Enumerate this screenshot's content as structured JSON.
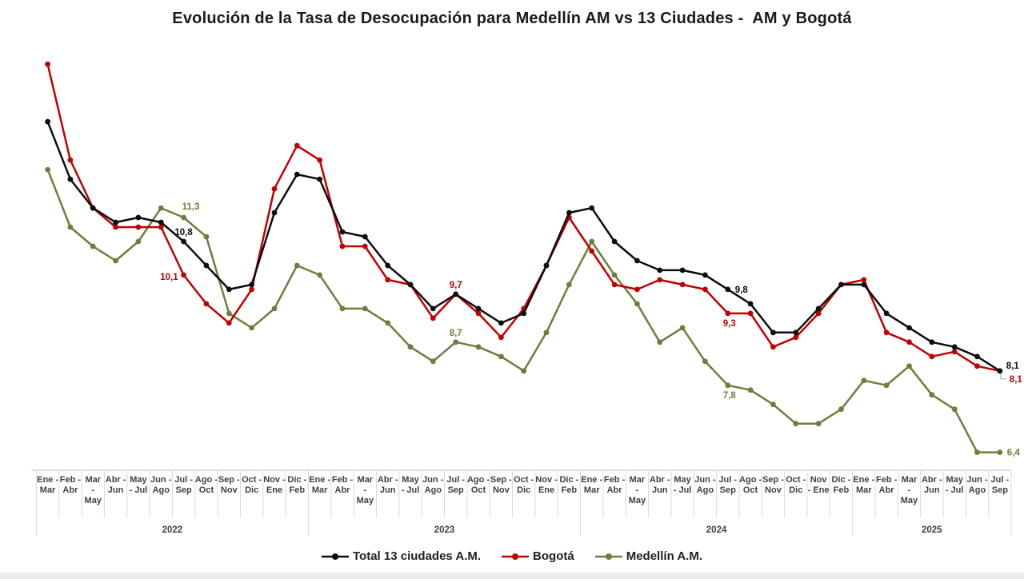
{
  "chart_data": {
    "type": "line",
    "title": "Evolución de la Tasa de Desocupación para Medellín AM vs 13 Ciudades -  AM y Bogotá",
    "ylabel": "",
    "xlabel": "",
    "ylim": [
      6,
      15
    ],
    "grid": "off",
    "legend_position": "bottom",
    "x_axis_note": "rolling quarters, multi-level axis grouped by year, no visible y axis",
    "categories": [
      [
        "Ene -",
        "Mar"
      ],
      [
        "Feb -",
        "Abr"
      ],
      [
        "Mar",
        "-",
        "May"
      ],
      [
        "Abr -",
        "Jun"
      ],
      [
        "May",
        "- Jul"
      ],
      [
        "Jun -",
        "Ago"
      ],
      [
        "Jul -",
        "Sep"
      ],
      [
        "Ago -",
        "Oct"
      ],
      [
        "Sep -",
        "Nov"
      ],
      [
        "Oct -",
        "Dic"
      ],
      [
        "Nov -",
        "Ene"
      ],
      [
        "Dic -",
        "Feb"
      ],
      [
        "Ene -",
        "Mar"
      ],
      [
        "Feb -",
        "Abr"
      ],
      [
        "Mar",
        "-",
        "May"
      ],
      [
        "Abr -",
        "Jun"
      ],
      [
        "May",
        "- Jul"
      ],
      [
        "Jun -",
        "Ago"
      ],
      [
        "Jul -",
        "Sep"
      ],
      [
        "Ago -",
        "Oct"
      ],
      [
        "Sep -",
        "Nov"
      ],
      [
        "Oct -",
        "Dic"
      ],
      [
        "Nov -",
        "Ene"
      ],
      [
        "Dic -",
        "Feb"
      ],
      [
        "Ene -",
        "Mar"
      ],
      [
        "Feb -",
        "Abr"
      ],
      [
        "Mar",
        "-",
        "May"
      ],
      [
        "Abr -",
        "Jun"
      ],
      [
        "May",
        "- Jul"
      ],
      [
        "Jun -",
        "Ago"
      ],
      [
        "Jul -",
        "Sep"
      ],
      [
        "Ago -",
        "Oct"
      ],
      [
        "Sep -",
        "Nov"
      ],
      [
        "Oct -",
        "Dic"
      ],
      [
        "Nov",
        "- Ene"
      ],
      [
        "Dic -",
        "Feb"
      ],
      [
        "Ene -",
        "Mar"
      ],
      [
        "Feb -",
        "Abr"
      ],
      [
        "Mar",
        "-",
        "May"
      ],
      [
        "Abr -",
        "Jun"
      ],
      [
        "May",
        "- Jul"
      ],
      [
        "Jun -",
        "Ago"
      ],
      [
        "Jul -",
        "Sep"
      ]
    ],
    "year_groups": [
      {
        "label": "2022",
        "start": 0,
        "count": 12
      },
      {
        "label": "2023",
        "start": 12,
        "count": 12
      },
      {
        "label": "2024",
        "start": 24,
        "count": 12
      },
      {
        "label": "2025",
        "start": 36,
        "count": 7
      }
    ],
    "series": [
      {
        "name": "Total 13 ciudades A.M.",
        "color": "#0d0d0d",
        "values": [
          13.3,
          12.1,
          11.5,
          11.2,
          11.3,
          11.2,
          10.8,
          10.3,
          9.8,
          9.9,
          11.4,
          12.2,
          12.1,
          11.0,
          10.9,
          10.3,
          9.9,
          9.4,
          9.7,
          9.4,
          9.1,
          9.3,
          10.3,
          11.4,
          11.5,
          10.8,
          10.4,
          10.2,
          10.2,
          10.1,
          9.8,
          9.5,
          8.9,
          8.9,
          9.4,
          9.9,
          9.9,
          9.3,
          9.0,
          8.7,
          8.6,
          8.4,
          8.1
        ],
        "labels": [
          {
            "index": 6,
            "text": "10,8",
            "placement": "above"
          },
          {
            "index": 30,
            "text": "9,8",
            "placement": "right"
          },
          {
            "index": 42,
            "text": "8,1",
            "placement": "right-above"
          }
        ]
      },
      {
        "name": "Bogotá",
        "color": "#c00000",
        "values": [
          14.5,
          12.5,
          11.5,
          11.1,
          11.1,
          11.1,
          10.1,
          9.5,
          9.1,
          9.8,
          11.9,
          12.8,
          12.5,
          10.7,
          10.7,
          10.0,
          9.9,
          9.2,
          9.7,
          9.3,
          8.8,
          9.4,
          10.3,
          11.3,
          10.6,
          9.9,
          9.8,
          10.0,
          9.9,
          9.8,
          9.3,
          9.3,
          8.6,
          8.8,
          9.3,
          9.9,
          10.0,
          8.9,
          8.7,
          8.4,
          8.5,
          8.2,
          8.1
        ],
        "labels": [
          {
            "index": 6,
            "text": "10,1",
            "placement": "left"
          },
          {
            "index": 18,
            "text": "9,7",
            "placement": "above"
          },
          {
            "index": 30,
            "text": "9,3",
            "placement": "below"
          },
          {
            "index": 42,
            "text": "8,1",
            "placement": "right-leader"
          }
        ]
      },
      {
        "name": "Medellín A.M.",
        "color": "#6f7d3d",
        "values": [
          12.3,
          11.1,
          10.7,
          10.4,
          10.8,
          11.5,
          11.3,
          10.9,
          9.3,
          9.0,
          9.4,
          10.3,
          10.1,
          9.4,
          9.4,
          9.1,
          8.6,
          8.3,
          8.7,
          8.6,
          8.4,
          8.1,
          8.9,
          9.9,
          10.8,
          10.1,
          9.5,
          8.7,
          9.0,
          8.3,
          7.8,
          7.7,
          7.4,
          7.0,
          7.0,
          7.3,
          7.9,
          7.8,
          8.2,
          7.6,
          7.3,
          6.4,
          6.4
        ],
        "labels": [
          {
            "index": 6,
            "text": "11,3",
            "placement": "above-right"
          },
          {
            "index": 18,
            "text": "8,7",
            "placement": "above"
          },
          {
            "index": 30,
            "text": "7,8",
            "placement": "below"
          },
          {
            "index": 42,
            "text": "6,4",
            "placement": "right"
          }
        ]
      }
    ]
  }
}
